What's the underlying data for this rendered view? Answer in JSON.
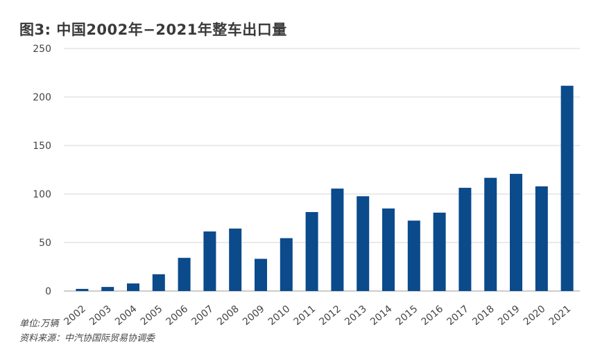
{
  "chart_data": {
    "type": "bar",
    "title": "图3: 中国2002年−2021年整车出口量",
    "categories": [
      "2002",
      "2003",
      "2004",
      "2005",
      "2006",
      "2007",
      "2008",
      "2009",
      "2010",
      "2011",
      "2012",
      "2013",
      "2014",
      "2015",
      "2016",
      "2017",
      "2018",
      "2019",
      "2020",
      "2021"
    ],
    "values": [
      2.2,
      4.2,
      7.8,
      17.3,
      34.2,
      61.4,
      64.4,
      33.2,
      54.5,
      81.4,
      105.6,
      97.7,
      85.1,
      72.6,
      80.8,
      106.4,
      116.7,
      120.8,
      107.9,
      211.6
    ],
    "ylim": [
      0,
      250
    ],
    "yticks": [
      0,
      50,
      100,
      150,
      200,
      250
    ],
    "grid": true,
    "bar_color": "#0b4a8b",
    "unit_note": "单位:万辆",
    "source_note": "资料来源：中汽协国际贸易协调委"
  }
}
